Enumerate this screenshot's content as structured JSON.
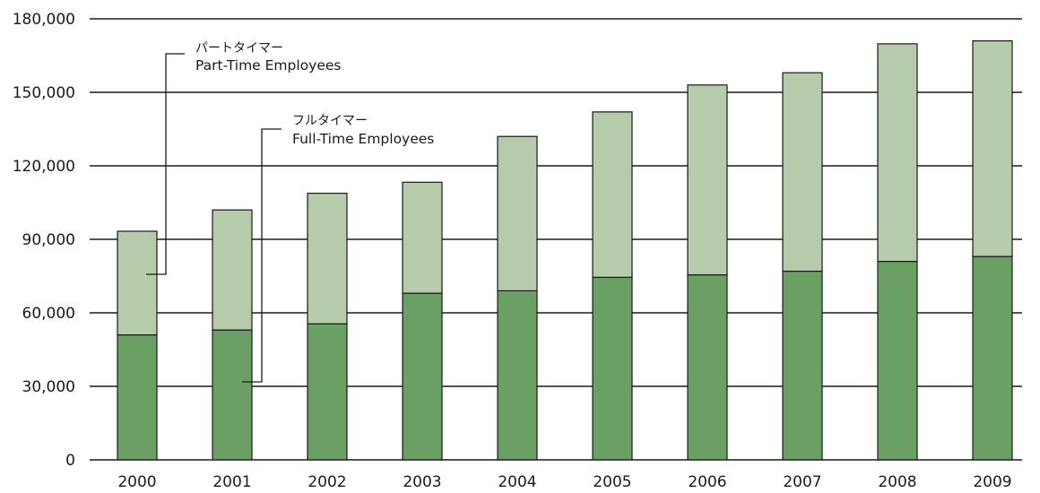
{
  "chart_data": {
    "type": "bar",
    "stacked": true,
    "categories": [
      "2000",
      "2001",
      "2002",
      "2003",
      "2004",
      "2005",
      "2006",
      "2007",
      "2008",
      "2009"
    ],
    "series": [
      {
        "name": "Full-Time Employees",
        "label_jp": "フルタイマー",
        "color": "#6aa063",
        "values": [
          51000,
          53000,
          55500,
          68000,
          69000,
          74500,
          75500,
          77000,
          81000,
          83000
        ]
      },
      {
        "name": "Part-Time Employees",
        "label_jp": "パートタイマー",
        "color": "#b5cba9",
        "values": [
          42300,
          49000,
          53300,
          45300,
          63000,
          67500,
          77500,
          81000,
          88800,
          88000
        ]
      }
    ],
    "ylim": [
      0,
      180000
    ],
    "yticks": [
      0,
      30000,
      60000,
      90000,
      120000,
      150000,
      180000
    ],
    "ytick_labels": [
      "0",
      "30,000",
      "60,000",
      "90,000",
      "120,000",
      "150,000",
      "180,000"
    ],
    "grid": true,
    "title": "",
    "xlabel": "",
    "ylabel": ""
  }
}
